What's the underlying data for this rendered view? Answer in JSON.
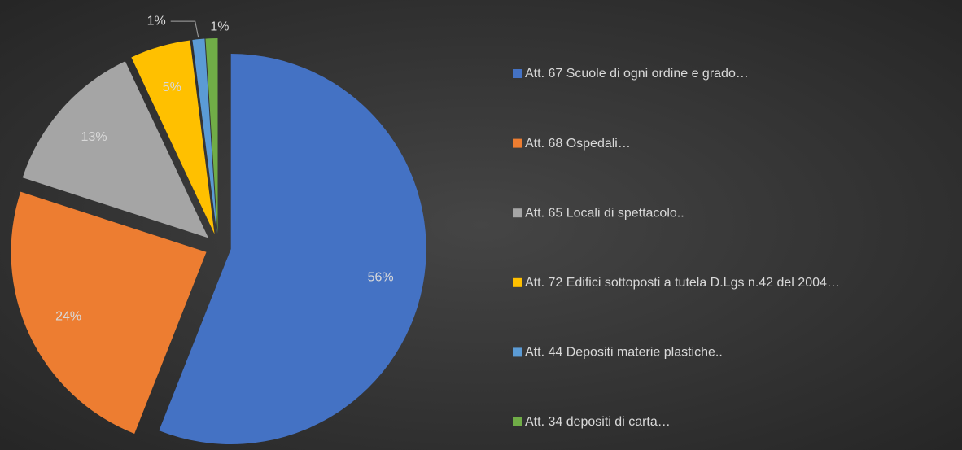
{
  "chart_data": {
    "type": "pie",
    "categories": [
      "Att. 67 Scuole di ogni ordine e grado…",
      "Att. 68 Ospedali…",
      "Att. 65 Locali di spettacolo..",
      "Att. 72 Edifici sottoposti a tutela D.Lgs n.42 del 2004…",
      "Att. 44 Depositi materie plastiche..",
      "Att. 34 depositi di carta…"
    ],
    "values": [
      56,
      24,
      13,
      5,
      1,
      1
    ],
    "value_labels": [
      "56%",
      "24%",
      "13%",
      "5%",
      "1%",
      "1%"
    ],
    "colors": [
      "#4472c4",
      "#ed7d31",
      "#a5a5a5",
      "#ffc000",
      "#5b9bd5",
      "#70ad47"
    ],
    "legend": "right"
  }
}
